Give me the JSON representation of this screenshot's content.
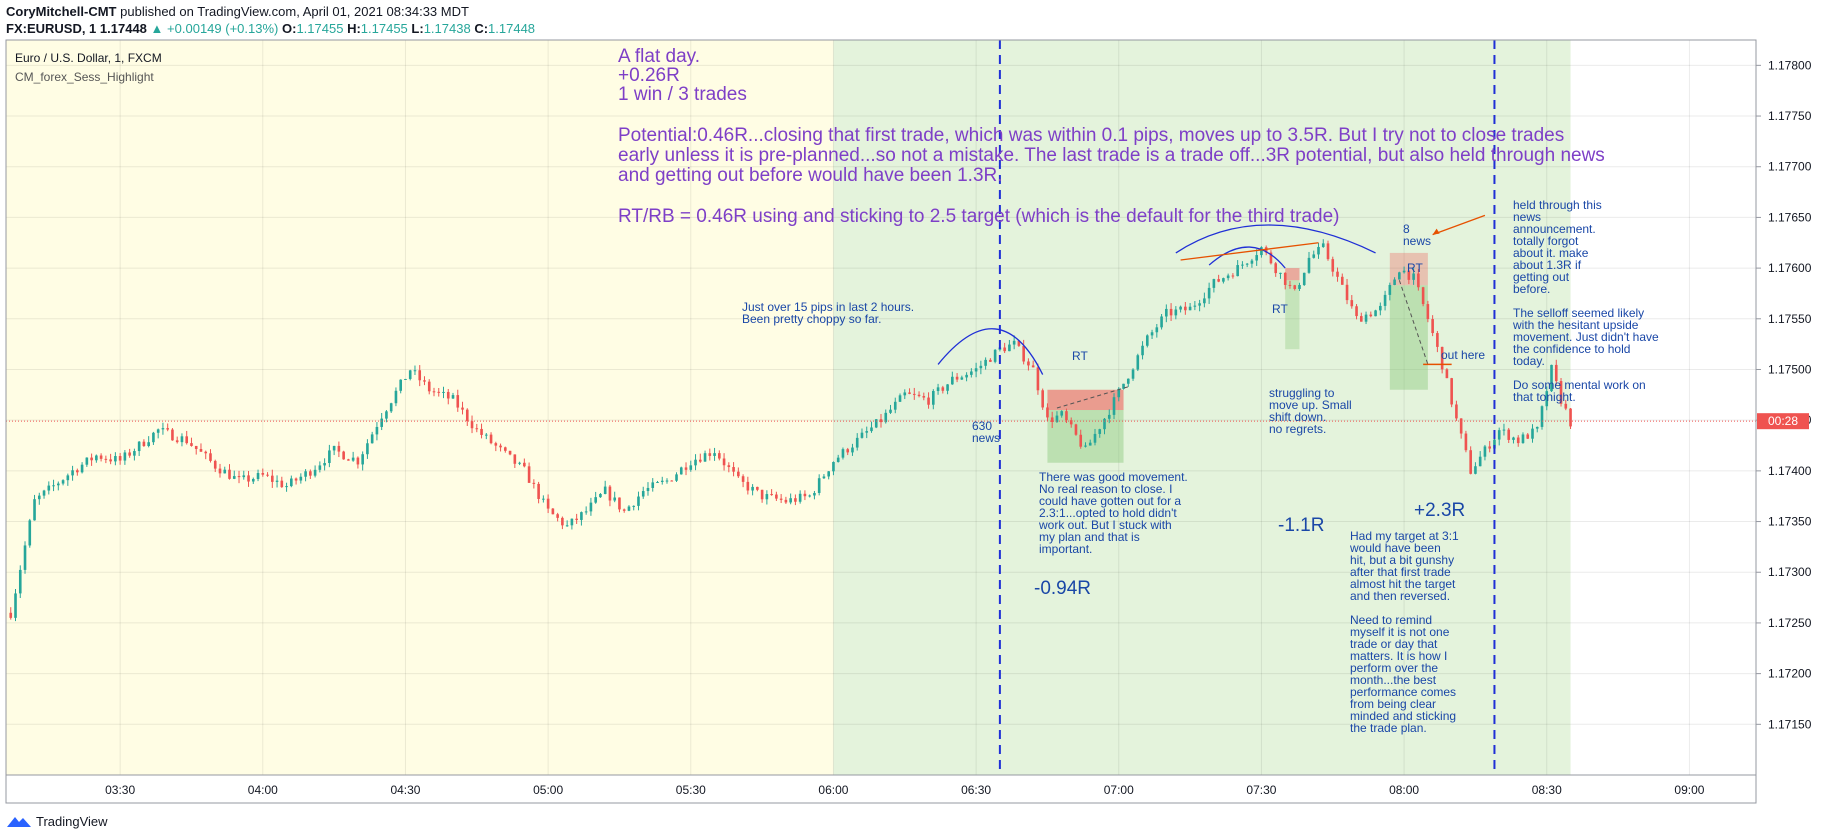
{
  "header": {
    "author": "CoryMitchell-CMT",
    "published": "published on TradingView.com, April 01, 2021 08:34:33 MDT",
    "symbol": "FX:EURUSD, 1",
    "last": "1.17448",
    "change": "+0.00149 (+0.13%)",
    "o_label": "O:",
    "o": "1.17455",
    "h_label": "H:",
    "h": "1.17455",
    "l_label": "L:",
    "l": "1.17438",
    "c_label": "C:",
    "c": "1.17448"
  },
  "legend": {
    "title": "Euro / U.S. Dollar, 1, FXCM",
    "indicator": "CM_forex_Sess_Highlight"
  },
  "price_tag": {
    "value": "00:28"
  },
  "footer": {
    "brand": "TradingView"
  },
  "colors": {
    "up": "#26a69a",
    "down": "#ef5350",
    "session_yellow": "#fffde4",
    "session_green": "#e4f3dc",
    "note_purple": "#7e3fc7",
    "note_blue": "#1a47a7",
    "line_blue": "#1f2fd6"
  },
  "chart_data": {
    "type": "candlestick",
    "x_ticks": [
      "03:30",
      "04:00",
      "04:30",
      "05:00",
      "05:30",
      "06:00",
      "06:30",
      "07:00",
      "07:30",
      "08:00",
      "08:30",
      "09:00"
    ],
    "y_ticks": [
      "1.17800",
      "1.17750",
      "1.17700",
      "1.17650",
      "1.17600",
      "1.17550",
      "1.17500",
      "1.17450",
      "1.17400",
      "1.17350",
      "1.17300",
      "1.17250",
      "1.17200",
      "1.17150"
    ],
    "ylim": [
      1.171,
      1.17825
    ],
    "x_range": [
      "03:06",
      "09:14"
    ],
    "current_price": 1.17449,
    "sessions": [
      {
        "color": "yellow",
        "from": "03:06",
        "to": "06:00"
      },
      {
        "color": "green",
        "from": "06:00",
        "to": "08:35"
      }
    ],
    "vertical_markers": [
      "06:35",
      "08:19"
    ],
    "close_path": [
      [
        "03:07",
        1.1726
      ],
      [
        "03:12",
        1.1737
      ],
      [
        "03:20",
        1.174
      ],
      [
        "03:25",
        1.17415
      ],
      [
        "03:30",
        1.1741
      ],
      [
        "03:38",
        1.1744
      ],
      [
        "03:44",
        1.1743
      ],
      [
        "03:50",
        1.17405
      ],
      [
        "03:55",
        1.1739
      ],
      [
        "04:00",
        1.17395
      ],
      [
        "04:05",
        1.17385
      ],
      [
        "04:10",
        1.174
      ],
      [
        "04:15",
        1.1742
      ],
      [
        "04:20",
        1.1741
      ],
      [
        "04:25",
        1.17455
      ],
      [
        "04:31",
        1.175
      ],
      [
        "04:35",
        1.1748
      ],
      [
        "04:40",
        1.1747
      ],
      [
        "04:45",
        1.1744
      ],
      [
        "04:50",
        1.1742
      ],
      [
        "04:55",
        1.174
      ],
      [
        "05:00",
        1.1736
      ],
      [
        "05:04",
        1.17345
      ],
      [
        "05:08",
        1.1736
      ],
      [
        "05:12",
        1.1738
      ],
      [
        "05:16",
        1.1736
      ],
      [
        "05:20",
        1.1738
      ],
      [
        "05:25",
        1.1739
      ],
      [
        "05:30",
        1.1741
      ],
      [
        "05:35",
        1.1742
      ],
      [
        "05:40",
        1.1739
      ],
      [
        "05:45",
        1.17375
      ],
      [
        "05:50",
        1.1737
      ],
      [
        "05:55",
        1.17375
      ],
      [
        "06:00",
        1.1741
      ],
      [
        "06:05",
        1.1743
      ],
      [
        "06:10",
        1.1745
      ],
      [
        "06:15",
        1.17475
      ],
      [
        "06:20",
        1.1747
      ],
      [
        "06:25",
        1.1749
      ],
      [
        "06:30",
        1.175
      ],
      [
        "06:35",
        1.1752
      ],
      [
        "06:38",
        1.17525
      ],
      [
        "06:42",
        1.175
      ],
      [
        "06:45",
        1.1745
      ],
      [
        "06:48",
        1.17455
      ],
      [
        "06:53",
        1.1742
      ],
      [
        "06:58",
        1.1746
      ],
      [
        "07:02",
        1.17495
      ],
      [
        "07:06",
        1.1753
      ],
      [
        "07:10",
        1.17555
      ],
      [
        "07:15",
        1.1756
      ],
      [
        "07:20",
        1.17585
      ],
      [
        "07:25",
        1.176
      ],
      [
        "07:30",
        1.1762
      ],
      [
        "07:33",
        1.176
      ],
      [
        "07:37",
        1.17575
      ],
      [
        "07:40",
        1.1761
      ],
      [
        "07:43",
        1.1762
      ],
      [
        "07:46",
        1.1759
      ],
      [
        "07:50",
        1.1755
      ],
      [
        "07:55",
        1.1756
      ],
      [
        "07:59",
        1.176
      ],
      [
        "08:02",
        1.1759
      ],
      [
        "08:05",
        1.1755
      ],
      [
        "08:08",
        1.17505
      ],
      [
        "08:11",
        1.1745
      ],
      [
        "08:14",
        1.174
      ],
      [
        "08:17",
        1.1742
      ],
      [
        "08:20",
        1.1744
      ],
      [
        "08:24",
        1.1743
      ],
      [
        "08:28",
        1.1744
      ],
      [
        "08:31",
        1.175
      ],
      [
        "08:33",
        1.1747
      ],
      [
        "08:35",
        1.17448
      ]
    ]
  },
  "annotations": {
    "summary_title": "A flat day.",
    "summary_r": "+0.26R",
    "summary_trades": "1 win / 3 trades",
    "potential_1": "Potential:0.46R...closing that first trade, which was within 0.1 pips, moves up to 3.5R. But I try not to close trades",
    "potential_2": "early unless it is pre-planned...so not a mistake. The last trade is a trade off...3R potential, but also held through news",
    "potential_3": "and getting out before would have been 1.3R.",
    "rtrb": "RT/RB = 0.46R using and sticking to 2.5 target (which is the default for the third trade)",
    "pips_1": "Just over 15 pips in last 2 hours.",
    "pips_2": "Been pretty choppy so far.",
    "rt_label": "RT",
    "news_630_a": "630",
    "news_630_b": "news",
    "news_8_a": "8",
    "news_8_b": "news",
    "out_here": "out here",
    "trade1_notes": [
      "There was good movement.",
      "No real reason to close. I",
      "could have gotten out for a",
      "2.3:1...opted to hold didn't",
      "work out. But I stuck with",
      "my plan and that is",
      "important."
    ],
    "trade1_r": "-0.94R",
    "trade2_notes": [
      "struggling to",
      "move up. Small",
      "shift down.",
      "no regrets."
    ],
    "trade2_r": "-1.1R",
    "trade3_r": "+2.3R",
    "trade3_notes": [
      "Had my target at 3:1",
      "would have been",
      "hit, but a bit gunshy",
      "after that first trade",
      "almost hit the target",
      "and then reversed.",
      "",
      "Need to remind",
      "myself it is not one",
      "trade or day that",
      "matters. It is how I",
      "perform over the",
      "month...the best",
      "performance comes",
      "from being clear",
      "minded and sticking",
      "the trade plan."
    ],
    "right_notes": [
      "held through this",
      "news",
      "announcement.",
      "totally forgot",
      "about it. make",
      "about 1.3R if",
      "getting out",
      "before.",
      "",
      "The selloff seemed likely",
      "with the hesitant upside",
      "movement. Just didn't have",
      "the confidence to hold",
      "today.",
      "",
      "Do some mental work on",
      "that tonight."
    ]
  }
}
